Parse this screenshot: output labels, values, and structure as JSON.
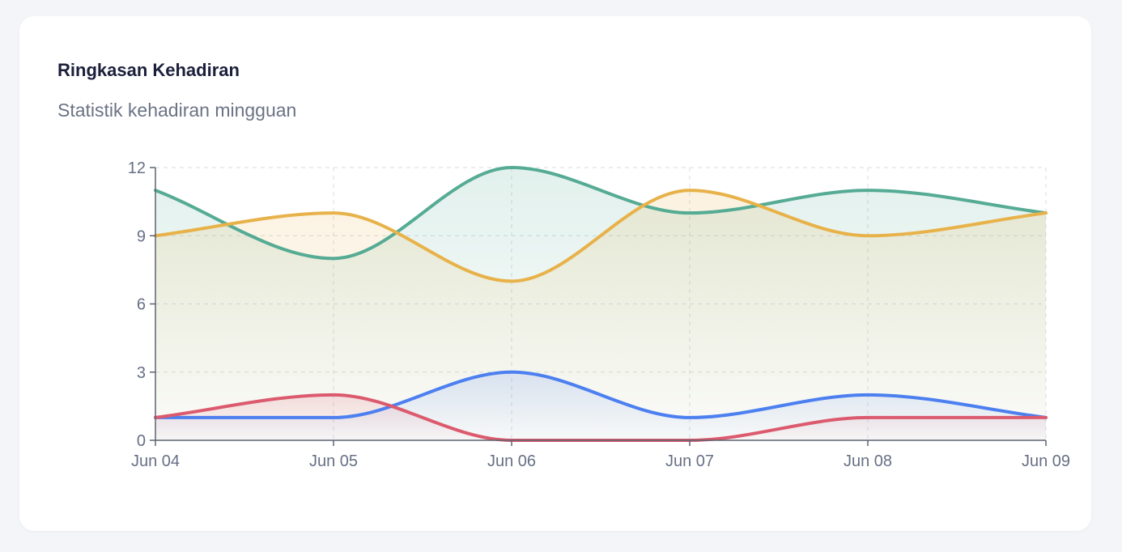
{
  "card": {
    "title": "Ringkasan Kehadiran",
    "subtitle": "Statistik kehadiran mingguan"
  },
  "chart_data": {
    "type": "area",
    "categories": [
      "Jun 04",
      "Jun 05",
      "Jun 06",
      "Jun 07",
      "Jun 08",
      "Jun 09"
    ],
    "ylim": [
      0,
      12
    ],
    "yticks": [
      0,
      3,
      6,
      9,
      12
    ],
    "grid": true,
    "legend": "none",
    "series": [
      {
        "color": "#55ab94",
        "values": [
          11,
          8,
          12,
          10,
          11,
          10
        ]
      },
      {
        "color": "#e8b24a",
        "values": [
          9,
          10,
          7,
          11,
          9,
          10
        ]
      },
      {
        "color": "#4c7ff0",
        "values": [
          1,
          1,
          3,
          1,
          2,
          1
        ]
      },
      {
        "color": "#dc5a6e",
        "values": [
          1,
          2,
          0,
          0,
          1,
          1
        ]
      }
    ]
  }
}
